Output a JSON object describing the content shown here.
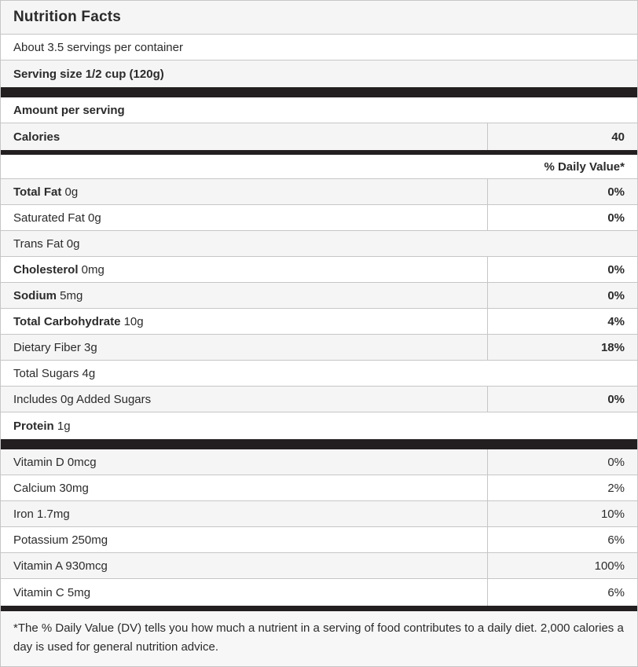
{
  "colors": {
    "shaded-row": "#f5f5f5",
    "black-bar": "#231f20",
    "border": "#c6c6c6",
    "text": "#2b2b2b"
  },
  "header": {
    "title": "Nutrition Facts"
  },
  "servings": {
    "per_container": "About 3.5 servings per container",
    "serving_size": "Serving size 1/2 cup (120g)"
  },
  "calories_section": {
    "amount_per_serving": "Amount per serving",
    "calories_label": "Calories",
    "calories_value": "40"
  },
  "daily_value_header": "% Daily Value*",
  "nutrients": [
    {
      "name": "Total Fat",
      "amount": "0g",
      "bold_name": true,
      "daily_value": "0%",
      "shaded": true
    },
    {
      "name": "Saturated Fat",
      "amount": "0g",
      "bold_name": false,
      "daily_value": "0%",
      "shaded": false
    },
    {
      "name": "Trans Fat",
      "amount": "0g",
      "bold_name": false,
      "daily_value": null,
      "shaded": true
    },
    {
      "name": "Cholesterol",
      "amount": "0mg",
      "bold_name": true,
      "daily_value": "0%",
      "shaded": false
    },
    {
      "name": "Sodium",
      "amount": "5mg",
      "bold_name": true,
      "daily_value": "0%",
      "shaded": true
    },
    {
      "name": "Total Carbohydrate",
      "amount": "10g",
      "bold_name": true,
      "daily_value": "4%",
      "shaded": false
    },
    {
      "name": "Dietary Fiber",
      "amount": "3g",
      "bold_name": false,
      "daily_value": "18%",
      "shaded": true
    },
    {
      "name": "Total Sugars",
      "amount": "4g",
      "bold_name": false,
      "daily_value": null,
      "shaded": false
    },
    {
      "name": "Includes 0g Added Sugars",
      "amount": "",
      "bold_name": false,
      "daily_value": "0%",
      "shaded": true
    },
    {
      "name": "Protein",
      "amount": "1g",
      "bold_name": true,
      "daily_value": null,
      "shaded": false
    }
  ],
  "vitamins": [
    {
      "label": "Vitamin D 0mcg",
      "daily_value": "0%",
      "shaded": true
    },
    {
      "label": "Calcium 30mg",
      "daily_value": "2%",
      "shaded": false
    },
    {
      "label": "Iron 1.7mg",
      "daily_value": "10%",
      "shaded": true
    },
    {
      "label": "Potassium 250mg",
      "daily_value": "6%",
      "shaded": false
    },
    {
      "label": "Vitamin A 930mcg",
      "daily_value": "100%",
      "shaded": true
    },
    {
      "label": "Vitamin C 5mg",
      "daily_value": "6%",
      "shaded": false
    }
  ],
  "footnote": "*The % Daily Value (DV) tells you how much a nutrient in a serving of food contributes to a daily diet. 2,000 calories a day is used for general nutrition advice."
}
